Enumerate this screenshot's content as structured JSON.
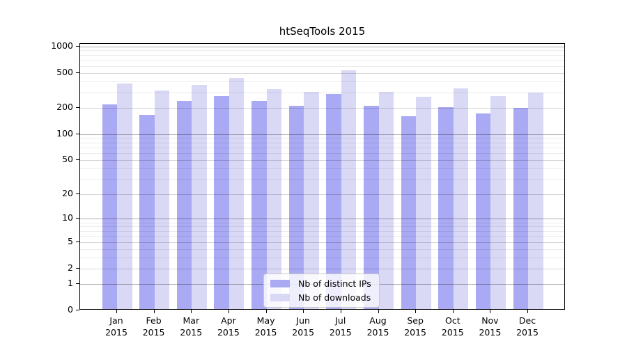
{
  "title": "htSeqTools 2015",
  "chart_data": {
    "type": "bar",
    "title": "htSeqTools 2015",
    "categories": [
      "Jan",
      "Feb",
      "Mar",
      "Apr",
      "May",
      "Jun",
      "Jul",
      "Aug",
      "Sep",
      "Oct",
      "Nov",
      "Dec"
    ],
    "x_year_label": "2015",
    "series": [
      {
        "name": "Nb of distinct IPs",
        "color": "#a9a9f4",
        "values": [
          212,
          161,
          230,
          264,
          229,
          201,
          278,
          202,
          153,
          195,
          167,
          191
        ]
      },
      {
        "name": "Nb of downloads",
        "color": "#d9d9f6",
        "values": [
          365,
          303,
          350,
          424,
          317,
          290,
          512,
          293,
          258,
          321,
          260,
          287
        ]
      }
    ],
    "xlabel": "",
    "ylabel": "",
    "y_scale": "log1p",
    "ylim": [
      0,
      1065
    ],
    "y_axis_ticks": [
      0,
      1,
      2,
      5,
      10,
      20,
      50,
      100,
      200,
      500,
      1000
    ],
    "gridline_values": {
      "major": [
        1,
        10,
        100,
        1000
      ],
      "mid": [
        2,
        5,
        20,
        50,
        200,
        500
      ],
      "minor": [
        3,
        4,
        6,
        7,
        8,
        9,
        30,
        40,
        60,
        70,
        80,
        90,
        300,
        400,
        600,
        700,
        800,
        900
      ]
    },
    "grid": "on",
    "legend_position": "lower center"
  },
  "colors": {
    "spine": "#000000",
    "background": "#ffffff"
  }
}
